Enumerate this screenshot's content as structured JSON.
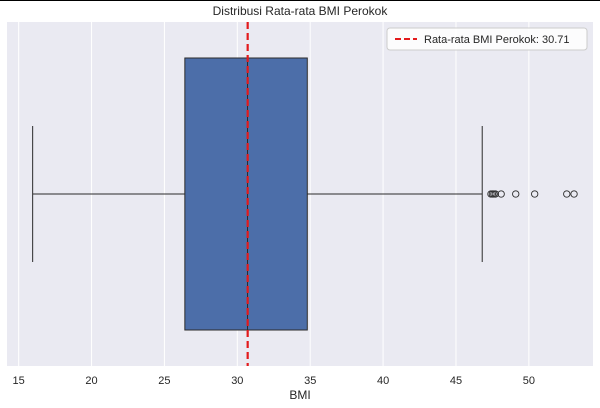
{
  "chart_data": {
    "type": "boxplot",
    "title": "Distribusi Rata-rata BMI Perokok",
    "xlabel": "BMI",
    "ylabel": "",
    "xlim": [
      14.2,
      54.4
    ],
    "xticks": [
      15,
      20,
      25,
      30,
      35,
      40,
      45,
      50
    ],
    "grid": true,
    "legend_position": "top-right",
    "box": {
      "whisker_low": 15.96,
      "q1": 26.4,
      "median": 30.7,
      "q3": 34.8,
      "whisker_high": 46.8,
      "outliers": [
        47.4,
        47.5,
        47.6,
        47.7,
        48.1,
        49.1,
        50.4,
        52.6,
        53.1
      ]
    },
    "mean_line": {
      "value": 30.71,
      "label": "Rata-rata BMI Perokok: 30.71",
      "color": "#e31a1c",
      "style": "dashed"
    },
    "colors": {
      "box_fill": "#4c6ea9",
      "plot_bg": "#eaeaf2",
      "grid": "#ffffff"
    }
  }
}
